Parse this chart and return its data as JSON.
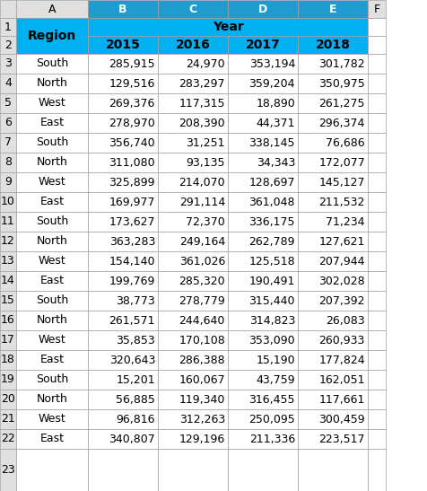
{
  "col_headers_row1": [
    "",
    "Year",
    "",
    "",
    ""
  ],
  "col_headers_row2": [
    "Region",
    "2015",
    "2016",
    "2017",
    "2018"
  ],
  "rows": [
    [
      "South",
      "285,915",
      "24,970",
      "353,194",
      "301,782"
    ],
    [
      "North",
      "129,516",
      "283,297",
      "359,204",
      "350,975"
    ],
    [
      "West",
      "269,376",
      "117,315",
      "18,890",
      "261,275"
    ],
    [
      "East",
      "278,970",
      "208,390",
      "44,371",
      "296,374"
    ],
    [
      "South",
      "356,740",
      "31,251",
      "338,145",
      "76,686"
    ],
    [
      "North",
      "311,080",
      "93,135",
      "34,343",
      "172,077"
    ],
    [
      "West",
      "325,899",
      "214,070",
      "128,697",
      "145,127"
    ],
    [
      "East",
      "169,977",
      "291,114",
      "361,048",
      "211,532"
    ],
    [
      "South",
      "173,627",
      "72,370",
      "336,175",
      "71,234"
    ],
    [
      "North",
      "363,283",
      "249,164",
      "262,789",
      "127,621"
    ],
    [
      "West",
      "154,140",
      "361,026",
      "125,518",
      "207,944"
    ],
    [
      "East",
      "199,769",
      "285,320",
      "190,491",
      "302,028"
    ],
    [
      "South",
      "38,773",
      "278,779",
      "315,440",
      "207,392"
    ],
    [
      "North",
      "261,571",
      "244,640",
      "314,823",
      "26,083"
    ],
    [
      "West",
      "35,853",
      "170,108",
      "353,090",
      "260,933"
    ],
    [
      "East",
      "320,643",
      "286,388",
      "15,190",
      "177,824"
    ],
    [
      "South",
      "15,201",
      "160,067",
      "43,759",
      "162,051"
    ],
    [
      "North",
      "56,885",
      "119,340",
      "316,455",
      "117,661"
    ],
    [
      "West",
      "96,816",
      "312,263",
      "250,095",
      "300,459"
    ],
    [
      "East",
      "340,807",
      "129,196",
      "211,336",
      "223,517"
    ]
  ],
  "row_numbers": [
    1,
    2,
    3,
    4,
    5,
    6,
    7,
    8,
    9,
    10,
    11,
    12,
    13,
    14,
    15,
    16,
    17,
    18,
    19,
    20,
    21,
    22,
    23
  ],
  "header_bg": "#00B0F0",
  "header_text": "#000000",
  "cell_bg": "#FFFFFF",
  "cell_text": "#000000",
  "border_color": "#A0A0A0",
  "row_num_bg": "#FFFFFF",
  "col_letter_bg": "#E0E0E0",
  "col_letters": [
    "",
    "A",
    "B",
    "C",
    "D",
    "E",
    "F"
  ],
  "selected_header_bg": "#1F9BD0",
  "font_size": 9,
  "header_font_size": 10
}
